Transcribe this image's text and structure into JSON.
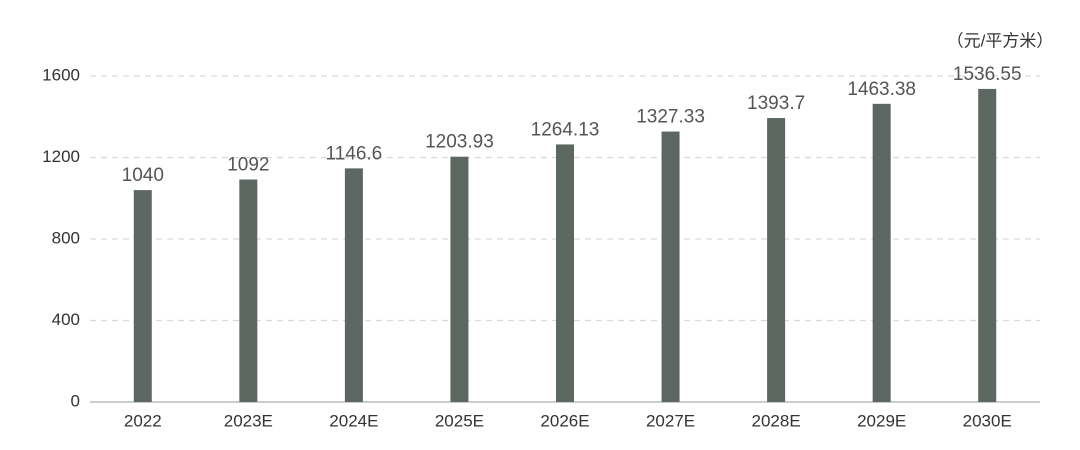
{
  "chart_data": {
    "type": "bar",
    "unit": "（元/平方米）",
    "categories": [
      "2022",
      "2023E",
      "2024E",
      "2025E",
      "2026E",
      "2027E",
      "2028E",
      "2029E",
      "2030E"
    ],
    "values": [
      1040,
      1092,
      1146.6,
      1203.93,
      1264.13,
      1327.33,
      1393.7,
      1463.38,
      1536.55
    ],
    "color": "#5b6760",
    "ylim": [
      0,
      1600
    ],
    "yticks": [
      0,
      400,
      800,
      1200,
      1600
    ],
    "grid": true
  }
}
